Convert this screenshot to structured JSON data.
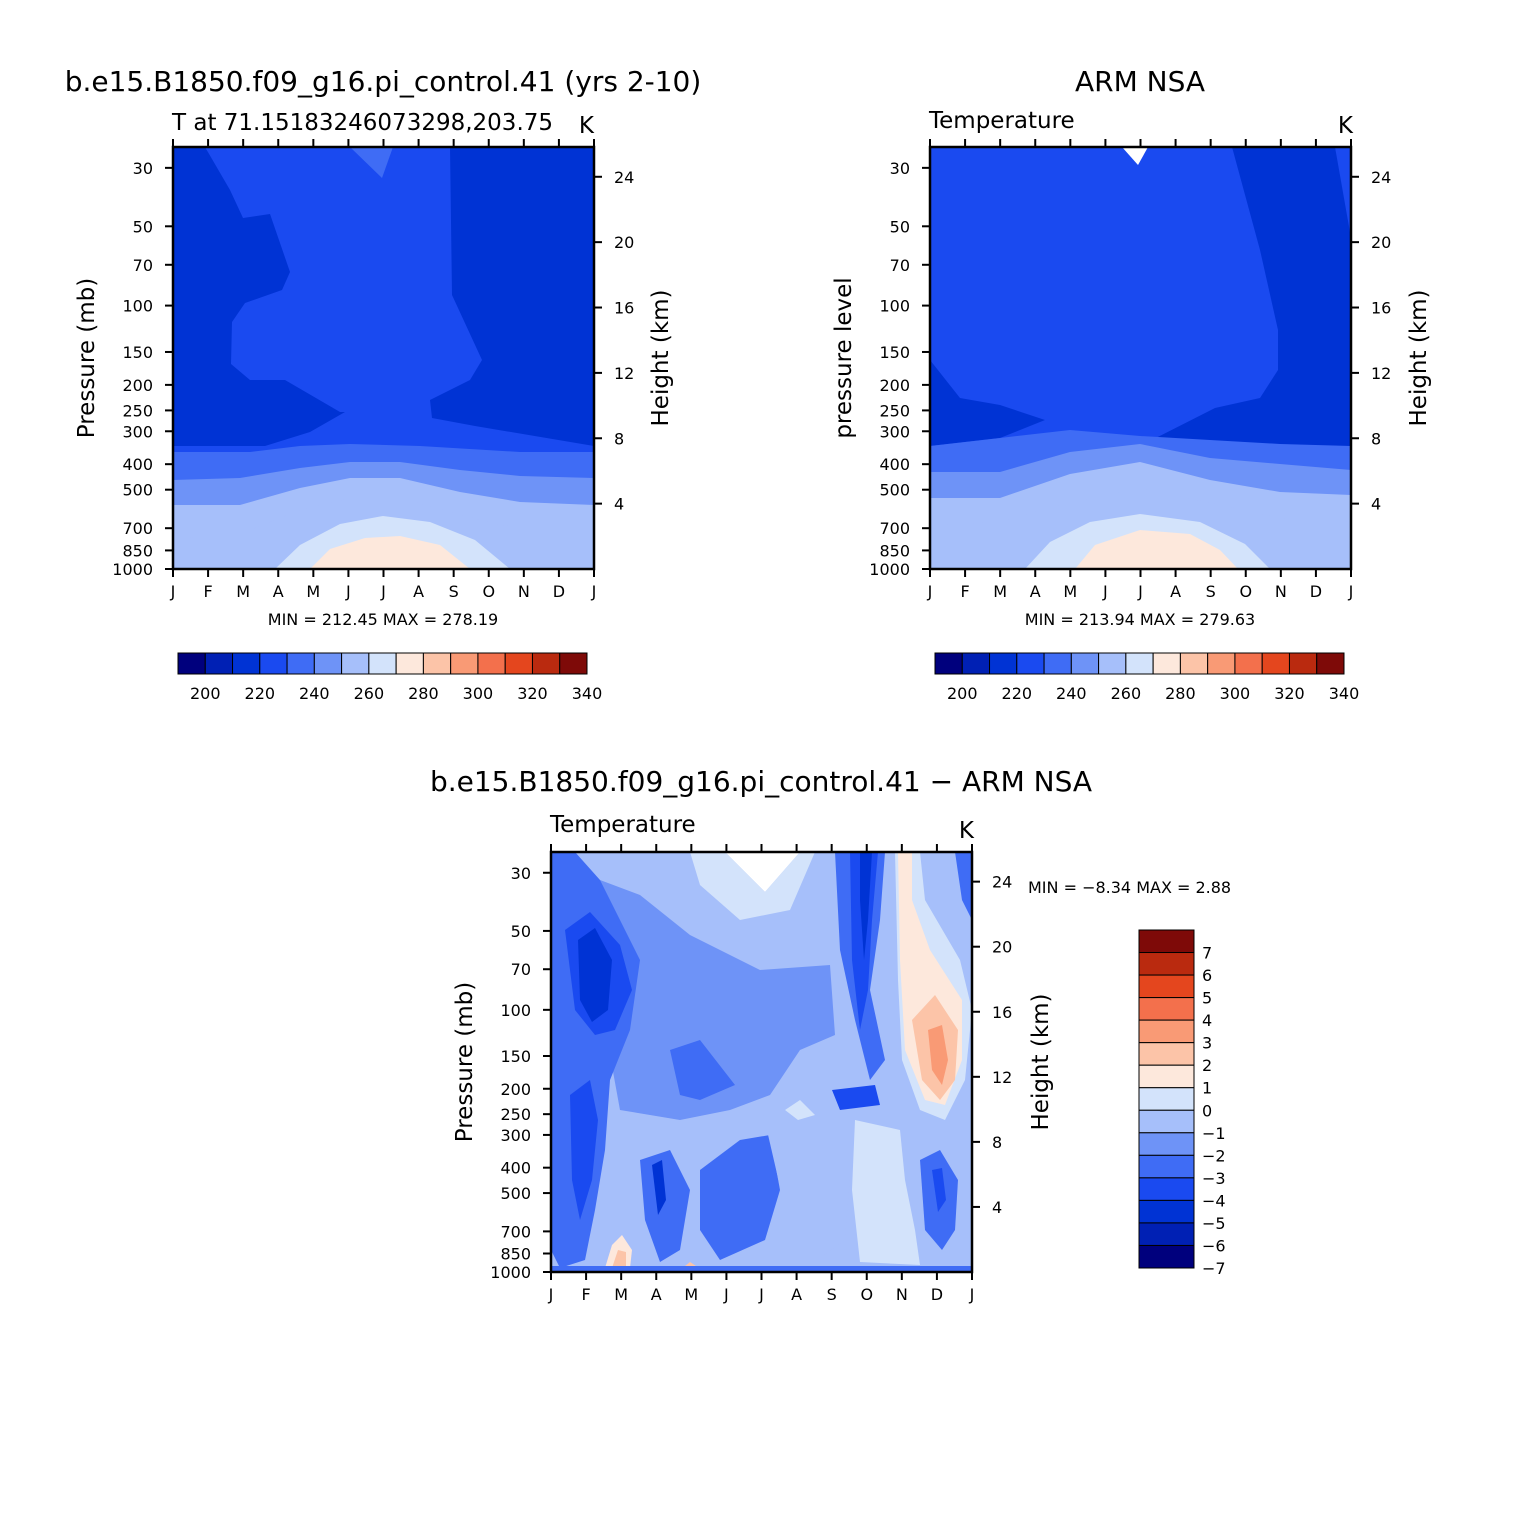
{
  "chart_data": [
    {
      "type": "heatmap",
      "title": "b.e15.B1850.f09_g16.pi_control.41 (yrs 2-10)",
      "subtitle": "T at 71.15183246073298,203.75",
      "units": "K",
      "ylabel": "Pressure (mb)",
      "ylabel_right": "Height (km)",
      "x_ticks": [
        "J",
        "F",
        "M",
        "A",
        "M",
        "J",
        "J",
        "A",
        "S",
        "O",
        "N",
        "D",
        "J"
      ],
      "y_ticks": [
        30,
        50,
        70,
        100,
        150,
        200,
        250,
        300,
        400,
        500,
        700,
        850,
        1000
      ],
      "y2_ticks": [
        24,
        20,
        16,
        12,
        8,
        4
      ],
      "y_scale": "log",
      "min_max_text": "MIN = 212.45 MAX = 278.19",
      "min": 212.45,
      "max": 278.19,
      "colorbar": {
        "orientation": "horizontal",
        "labels": [
          "200",
          "220",
          "240",
          "260",
          "280",
          "300",
          "320",
          "340"
        ]
      }
    },
    {
      "type": "heatmap",
      "title": "ARM NSA",
      "subtitle": "Temperature",
      "units": "K",
      "ylabel": "pressure level",
      "ylabel_right": "Height (km)",
      "x_ticks": [
        "J",
        "F",
        "M",
        "A",
        "M",
        "J",
        "J",
        "A",
        "S",
        "O",
        "N",
        "D",
        "J"
      ],
      "y_ticks": [
        30,
        50,
        70,
        100,
        150,
        200,
        250,
        300,
        400,
        500,
        700,
        850,
        1000
      ],
      "y2_ticks": [
        24,
        20,
        16,
        12,
        8,
        4
      ],
      "y_scale": "log",
      "min_max_text": "MIN = 213.94 MAX = 279.63",
      "min": 213.94,
      "max": 279.63,
      "colorbar": {
        "orientation": "horizontal",
        "labels": [
          "200",
          "220",
          "240",
          "260",
          "280",
          "300",
          "320",
          "340"
        ]
      }
    },
    {
      "type": "heatmap",
      "title": "b.e15.B1850.f09_g16.pi_control.41 − ARM NSA",
      "subtitle": "Temperature",
      "units": "K",
      "ylabel": "Pressure (mb)",
      "ylabel_right": "Height (km)",
      "x_ticks": [
        "J",
        "F",
        "M",
        "A",
        "M",
        "J",
        "J",
        "A",
        "S",
        "O",
        "N",
        "D",
        "J"
      ],
      "y_ticks": [
        30,
        50,
        70,
        100,
        150,
        200,
        250,
        300,
        400,
        500,
        700,
        850,
        1000
      ],
      "y2_ticks": [
        24,
        20,
        16,
        12,
        8,
        4
      ],
      "y_scale": "log",
      "min_max_text": "MIN =   −8.34 MAX =    2.88",
      "min": -8.34,
      "max": 2.88,
      "colorbar": {
        "orientation": "vertical",
        "labels": [
          "7",
          "6",
          "5",
          "4",
          "3",
          "2",
          "1",
          "0",
          "−1",
          "−2",
          "−3",
          "−4",
          "−5",
          "−6",
          "−7"
        ]
      }
    }
  ],
  "palette": [
    "#00007d",
    "#0020b4",
    "#0033d4",
    "#1a4af0",
    "#3f6cf5",
    "#6e93f7",
    "#a6bffa",
    "#d3e3fb",
    "#fde8dc",
    "#fcc4a8",
    "#f99a75",
    "#f3704c",
    "#e4461e",
    "#ba2a0f",
    "#7e0a08"
  ],
  "diff_palette": [
    "#7e0a08",
    "#ba2a0f",
    "#e4461e",
    "#f3704c",
    "#f99a75",
    "#fcc4a8",
    "#fde8dc",
    "#d3e3fb",
    "#a6bffa",
    "#6e93f7",
    "#3f6cf5",
    "#1a4af0",
    "#0033d4",
    "#0020b4",
    "#00007d"
  ]
}
